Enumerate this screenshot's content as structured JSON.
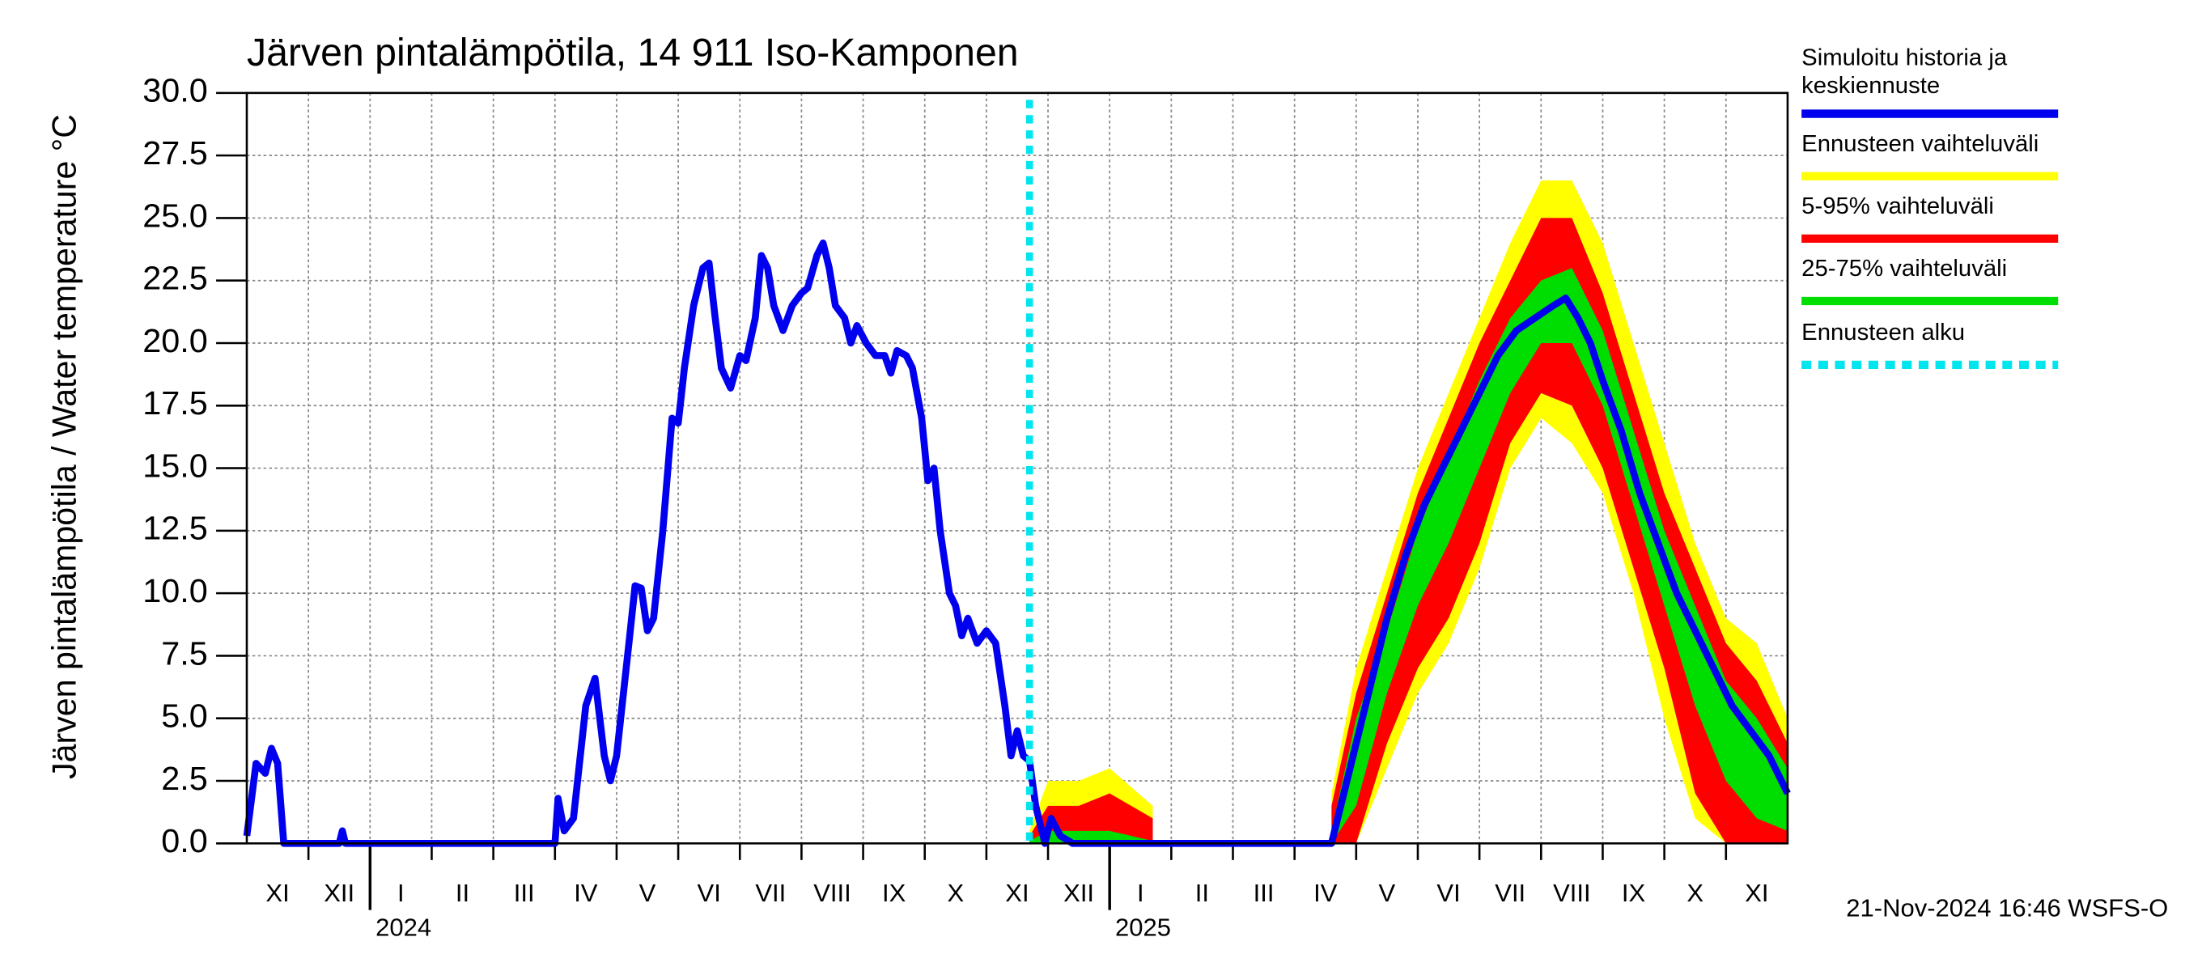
{
  "chart_data": {
    "type": "line",
    "title": "Järven pintalämpötila, 14 911 Iso-Kamponen",
    "ylabel": "Järven pintalämpötila / Water temperature °C",
    "ylim": [
      0,
      30
    ],
    "yticks": [
      {
        "value": 0,
        "label": "0.0"
      },
      {
        "value": 2.5,
        "label": "2.5"
      },
      {
        "value": 5,
        "label": "5.0"
      },
      {
        "value": 7.5,
        "label": "7.5"
      },
      {
        "value": 10,
        "label": "10.0"
      },
      {
        "value": 12.5,
        "label": "12.5"
      },
      {
        "value": 15,
        "label": "15.0"
      },
      {
        "value": 17.5,
        "label": "17.5"
      },
      {
        "value": 20,
        "label": "20.0"
      },
      {
        "value": 22.5,
        "label": "22.5"
      },
      {
        "value": 25,
        "label": "25.0"
      },
      {
        "value": 27.5,
        "label": "27.5"
      },
      {
        "value": 30,
        "label": "30.0"
      }
    ],
    "grid": true,
    "xlim": [
      0,
      25
    ],
    "x_month_labels": [
      "XI",
      "XII",
      "I",
      "II",
      "III",
      "IV",
      "V",
      "VI",
      "VII",
      "VIII",
      "IX",
      "X",
      "XI",
      "XII",
      "I",
      "II",
      "III",
      "IV",
      "V",
      "VI",
      "VII",
      "VIII",
      "IX",
      "X",
      "XI"
    ],
    "xticks": [
      {
        "value": 2,
        "label": "2024"
      },
      {
        "value": 14,
        "label": "2025"
      }
    ],
    "bands": [
      {
        "name": "Ennusteen vaihteluväli",
        "color": "#ffff00",
        "x": [
          12.7,
          13.0,
          13.5,
          14.0,
          14.7,
          16.0,
          17.6,
          18,
          18.5,
          19,
          19.5,
          20,
          20.5,
          21,
          21.5,
          22,
          22.5,
          23,
          23.5,
          24,
          24.5,
          25
        ],
        "low": [
          0,
          0,
          0,
          0,
          0,
          null,
          0,
          0,
          3,
          6,
          8,
          11,
          15,
          17,
          16,
          14,
          10,
          5,
          1,
          0,
          0,
          0
        ],
        "high": [
          0.5,
          2.5,
          2.5,
          3,
          1.5,
          null,
          2,
          7,
          11,
          15,
          18,
          21,
          24,
          26.5,
          26.5,
          24,
          20,
          16,
          12,
          9,
          8,
          5
        ]
      },
      {
        "name": "5-95% vaihteluväli",
        "color": "#ff0000",
        "x": [
          12.7,
          13.0,
          13.5,
          14.0,
          14.7,
          16.0,
          17.6,
          18,
          18.5,
          19,
          19.5,
          20,
          20.5,
          21,
          21.5,
          22,
          22.5,
          23,
          23.5,
          24,
          24.5,
          25
        ],
        "low": [
          0,
          0,
          0,
          0,
          0,
          null,
          0,
          0,
          4,
          7,
          9,
          12,
          16,
          18,
          17.5,
          15,
          11,
          7,
          2,
          0,
          0,
          0
        ],
        "high": [
          0.3,
          1.5,
          1.5,
          2,
          1,
          null,
          1.5,
          6,
          10,
          14,
          17,
          20,
          22.5,
          25,
          25,
          22,
          18,
          14,
          11,
          8,
          6.5,
          4
        ]
      },
      {
        "name": "25-75% vaihteluväli",
        "color": "#00dd00",
        "x": [
          12.7,
          13.0,
          13.5,
          14.0,
          14.7,
          16.0,
          17.6,
          18,
          18.5,
          19,
          19.5,
          20,
          20.5,
          21,
          21.5,
          22,
          22.5,
          23,
          23.5,
          24,
          24.5,
          25
        ],
        "low": [
          0,
          0,
          0,
          0,
          0,
          null,
          0,
          1.5,
          6,
          9.5,
          12,
          15,
          18,
          20,
          20,
          17.5,
          13.5,
          9.5,
          5.5,
          2.5,
          1,
          0.5
        ],
        "high": [
          0.1,
          0.5,
          0.5,
          0.5,
          0.1,
          null,
          0.5,
          5,
          8.5,
          12.5,
          15.5,
          18.5,
          21,
          22.5,
          23,
          20.5,
          16.5,
          12.5,
          9.5,
          6.5,
          5,
          3
        ]
      }
    ],
    "series": [
      {
        "name": "Simuloitu historia ja keskiennuste",
        "color": "#0000ee",
        "x": [
          0,
          0.15,
          0.3,
          0.4,
          0.5,
          0.6,
          1.5,
          1.55,
          1.6,
          5.0,
          5.05,
          5.15,
          5.3,
          5.5,
          5.65,
          5.8,
          5.9,
          6.0,
          6.2,
          6.3,
          6.4,
          6.5,
          6.6,
          6.75,
          6.9,
          7.0,
          7.1,
          7.25,
          7.4,
          7.5,
          7.6,
          7.7,
          7.85,
          8.0,
          8.1,
          8.25,
          8.35,
          8.45,
          8.55,
          8.7,
          8.85,
          9.0,
          9.1,
          9.25,
          9.35,
          9.45,
          9.55,
          9.7,
          9.8,
          9.9,
          10.05,
          10.2,
          10.35,
          10.45,
          10.55,
          10.7,
          10.8,
          10.95,
          11.05,
          11.15,
          11.25,
          11.4,
          11.5,
          11.6,
          11.7,
          11.85,
          12.0,
          12.15,
          12.3,
          12.4,
          12.5,
          12.6,
          12.7,
          12.8,
          12.95,
          13.05,
          13.2,
          13.4,
          17.6,
          17.9,
          18.2,
          18.5,
          18.8,
          19.1,
          19.4,
          19.7,
          20.0,
          20.3,
          20.6,
          20.9,
          21.2,
          21.4,
          21.6,
          21.8,
          22.0,
          22.3,
          22.6,
          22.9,
          23.2,
          23.5,
          23.8,
          24.1,
          24.4,
          24.7,
          25.0
        ],
        "values": [
          0.3,
          3.2,
          2.8,
          3.8,
          3.2,
          0,
          0,
          0.5,
          0,
          0,
          1.8,
          0.5,
          1.0,
          5.5,
          6.6,
          3.5,
          2.5,
          3.5,
          8.0,
          10.3,
          10.2,
          8.5,
          9.0,
          12.5,
          17.0,
          16.8,
          19.0,
          21.5,
          23.0,
          23.2,
          21.0,
          19.0,
          18.2,
          19.5,
          19.3,
          21.0,
          23.5,
          23.0,
          21.5,
          20.5,
          21.5,
          22.0,
          22.2,
          23.5,
          24.0,
          23.0,
          21.5,
          21.0,
          20.0,
          20.7,
          20.0,
          19.5,
          19.5,
          18.8,
          19.7,
          19.5,
          19.0,
          17.0,
          14.5,
          15.0,
          12.5,
          10.0,
          9.5,
          8.3,
          9.0,
          8.0,
          8.5,
          8.0,
          5.5,
          3.5,
          4.5,
          3.5,
          3.3,
          1.5,
          0,
          1.0,
          0.3,
          0,
          0,
          3,
          6,
          9,
          11.5,
          13.5,
          15.0,
          16.5,
          18,
          19.5,
          20.5,
          21.0,
          21.5,
          21.8,
          21.0,
          20.0,
          18.5,
          16.5,
          14.0,
          12.0,
          10.0,
          8.5,
          7.0,
          5.5,
          4.5,
          3.5,
          2.0
        ]
      }
    ],
    "forecast_start": {
      "name": "Ennusteen alku",
      "color": "#00e5ee",
      "x": 12.7
    },
    "timestamp": "21-Nov-2024 16:46 WSFS-O"
  }
}
